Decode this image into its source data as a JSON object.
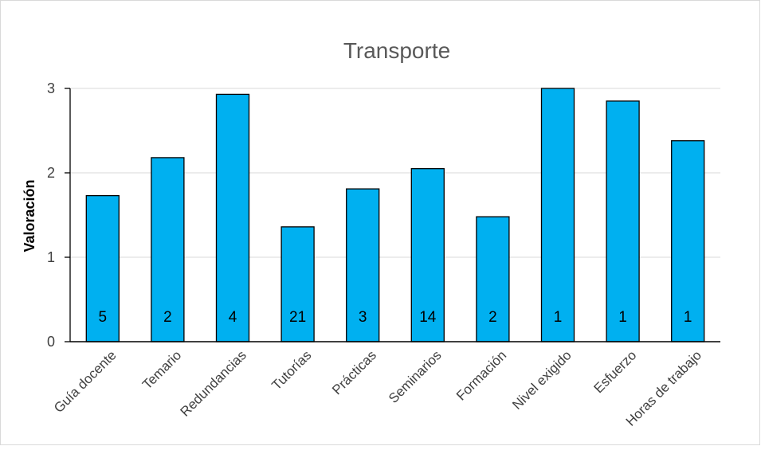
{
  "chart_data": {
    "type": "bar",
    "title": "Transporte",
    "xlabel": "",
    "ylabel": "Valoración",
    "ylim": [
      0,
      3
    ],
    "yticks": [
      0,
      1,
      2,
      3
    ],
    "grid": true,
    "legend": "none",
    "bar_color": "#00b0f0",
    "bar_edge_color": "#000000",
    "categories": [
      "Guía docente",
      "Temario",
      "Redundancias",
      "Tutorías",
      "Prácticas",
      "Seminarios",
      "Formación",
      "Nivel exigido",
      "Esfuerzo",
      "Horas de trabajo"
    ],
    "values": [
      1.73,
      2.18,
      2.93,
      1.36,
      1.81,
      2.05,
      1.48,
      3.0,
      2.85,
      2.38
    ],
    "data_labels": [
      "5",
      "2",
      "4",
      "21",
      "3",
      "14",
      "2",
      "1",
      "1",
      "1"
    ]
  }
}
